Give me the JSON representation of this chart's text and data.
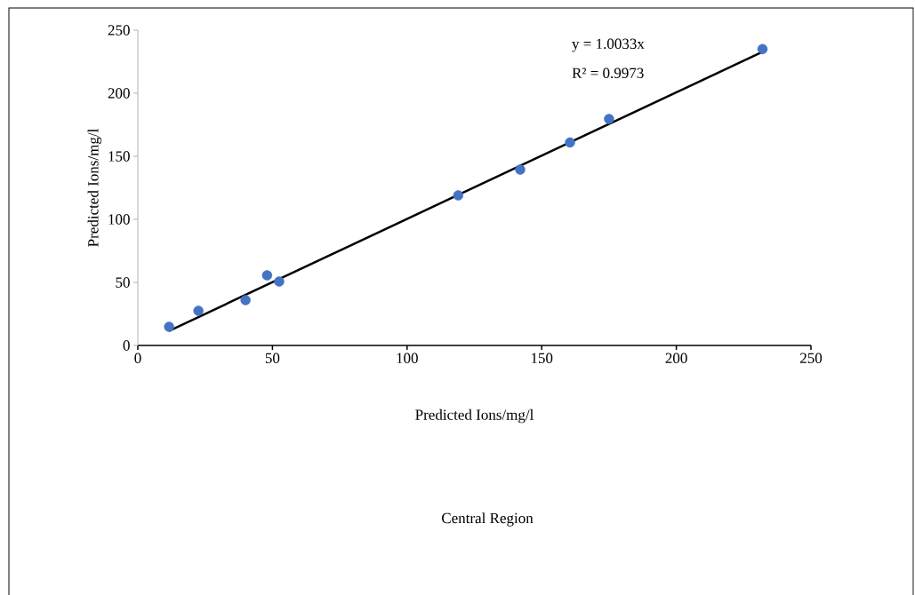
{
  "chart_data": {
    "type": "scatter",
    "xlabel": "Predicted Ions/mg/l",
    "ylabel": "Predicted Ions/mg/l",
    "annotations": [
      "y = 1.0033x",
      "R² = 0.9973",
      "Central Region"
    ],
    "xlim": [
      0,
      250
    ],
    "ylim": [
      0,
      250
    ],
    "xticks": [
      0,
      50,
      100,
      150,
      200,
      250
    ],
    "yticks": [
      0,
      50,
      100,
      150,
      200,
      250
    ],
    "grid": false,
    "series": [
      {
        "marker": "circle",
        "color": "#4472c4",
        "x": [
          11.6,
          22.5,
          40,
          48,
          52.5,
          119,
          142,
          160.5,
          175,
          232
        ],
        "values": [
          14.8,
          27.5,
          36,
          55.6,
          50.7,
          119,
          139.4,
          161,
          179.6,
          235
        ]
      },
      {
        "type": "line",
        "marker": "none",
        "line_style": "solid",
        "color": "#000000",
        "x": [
          11.6,
          232
        ],
        "values": [
          11.6,
          232.8
        ]
      }
    ]
  }
}
